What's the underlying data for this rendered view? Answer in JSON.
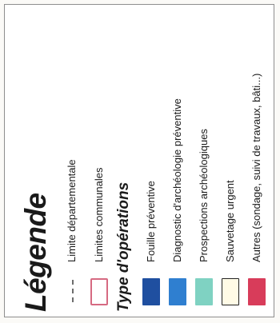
{
  "legend": {
    "title": "Légende",
    "boundaries": [
      {
        "label": "Limite départementale",
        "symbol": "dashed-line-symbol",
        "color": "#6d6d6d"
      },
      {
        "label": "Limites communales",
        "symbol": "outlined-box-symbol",
        "color": "#d66a82"
      }
    ],
    "operations_title": "Type d'opérations",
    "operations": [
      {
        "label": "Fouille préventive",
        "color": "#1f4fa0"
      },
      {
        "label": "Diagnostic d'archéologie préventive",
        "color": "#2f7fd0"
      },
      {
        "label": "Prospections archéologiques",
        "color": "#7fd2c2"
      },
      {
        "label": "Sauvetage urgent",
        "color": "#fffbe6"
      },
      {
        "label": "Autres (sondage, suivi de travaux, bâti...)",
        "color": "#d83c5a"
      }
    ]
  }
}
